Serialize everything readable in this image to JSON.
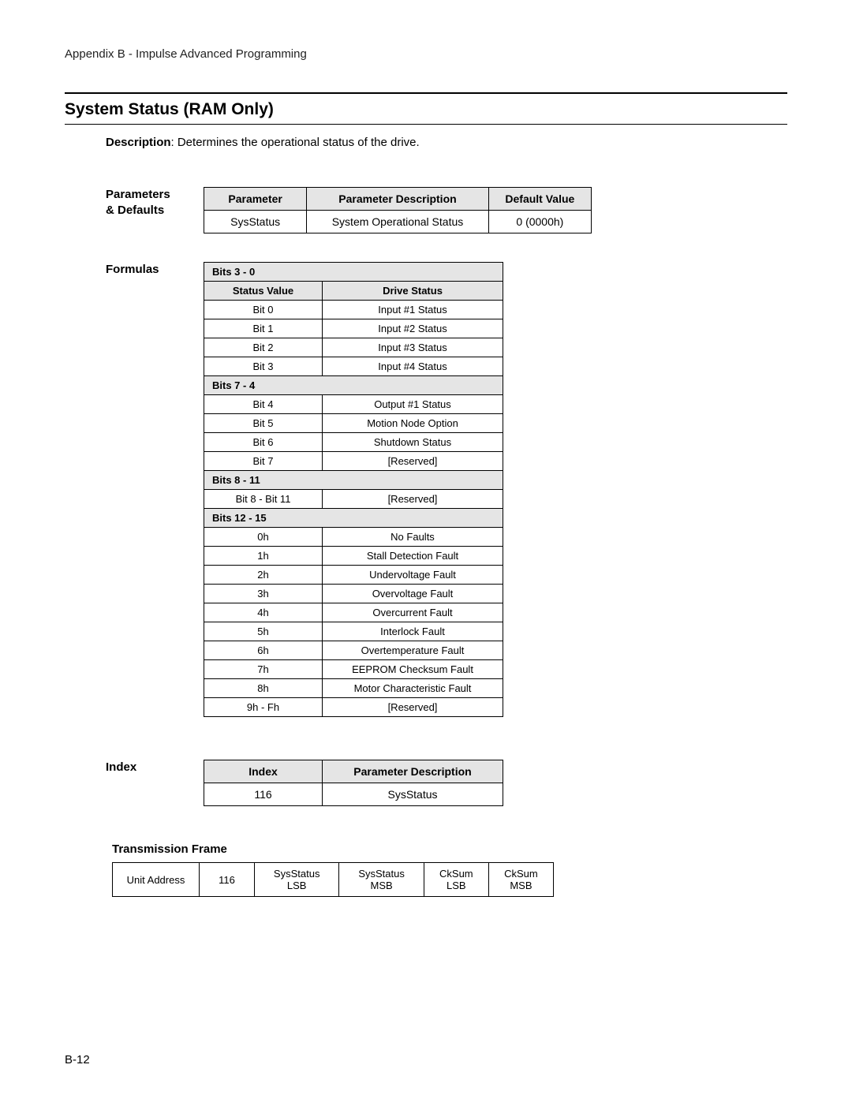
{
  "colors": {
    "text": "#000000",
    "background": "#ffffff",
    "table_header_bg": "#e5e5e5",
    "border": "#000000"
  },
  "typography": {
    "body_family": "Arial, Helvetica, sans-serif",
    "header_size_pt": 11,
    "title_size_pt": 16,
    "table_size_pt": 10
  },
  "header": "Appendix B - Impulse Advanced Programming",
  "title": "System Status (RAM Only)",
  "description_label": "Description",
  "description_text": ":  Determines the operational status of the drive.",
  "parameters": {
    "label_line1": "Parameters",
    "label_line2": "& Defaults",
    "columns": [
      "Parameter",
      "Parameter Description",
      "Default Value"
    ],
    "rows": [
      [
        "SysStatus",
        "System Operational Status",
        "0 (0000h)"
      ]
    ]
  },
  "formulas": {
    "label": "Formulas",
    "col_headers": [
      "Status Value",
      "Drive Status"
    ],
    "groups": [
      {
        "title": "Bits 3 - 0",
        "show_col_headers": true,
        "rows": [
          [
            "Bit 0",
            "Input #1 Status"
          ],
          [
            "Bit 1",
            "Input #2 Status"
          ],
          [
            "Bit 2",
            "Input #3 Status"
          ],
          [
            "Bit 3",
            "Input #4 Status"
          ]
        ]
      },
      {
        "title": "Bits 7 - 4",
        "show_col_headers": false,
        "rows": [
          [
            "Bit 4",
            "Output #1 Status"
          ],
          [
            "Bit 5",
            "Motion Node Option"
          ],
          [
            "Bit 6",
            "Shutdown Status"
          ],
          [
            "Bit 7",
            "[Reserved]"
          ]
        ]
      },
      {
        "title": "Bits 8 - 11",
        "show_col_headers": false,
        "rows": [
          [
            "Bit 8 - Bit 11",
            "[Reserved]"
          ]
        ]
      },
      {
        "title": "Bits 12 - 15",
        "show_col_headers": false,
        "rows": [
          [
            "0h",
            "No Faults"
          ],
          [
            "1h",
            "Stall Detection Fault"
          ],
          [
            "2h",
            "Undervoltage Fault"
          ],
          [
            "3h",
            "Overvoltage Fault"
          ],
          [
            "4h",
            "Overcurrent Fault"
          ],
          [
            "5h",
            "Interlock Fault"
          ],
          [
            "6h",
            "Overtemperature Fault"
          ],
          [
            "7h",
            "EEPROM Checksum Fault"
          ],
          [
            "8h",
            "Motor Characteristic Fault"
          ],
          [
            "9h - Fh",
            "[Reserved]"
          ]
        ]
      }
    ]
  },
  "index": {
    "label": "Index",
    "columns": [
      "Index",
      "Parameter Description"
    ],
    "rows": [
      [
        "116",
        "SysStatus"
      ]
    ]
  },
  "transmission": {
    "label": "Transmission Frame",
    "cells": [
      "Unit Address",
      "116",
      "SysStatus LSB",
      "SysStatus MSB",
      "CkSum LSB",
      "CkSum MSB"
    ]
  },
  "page_number": "B-12"
}
